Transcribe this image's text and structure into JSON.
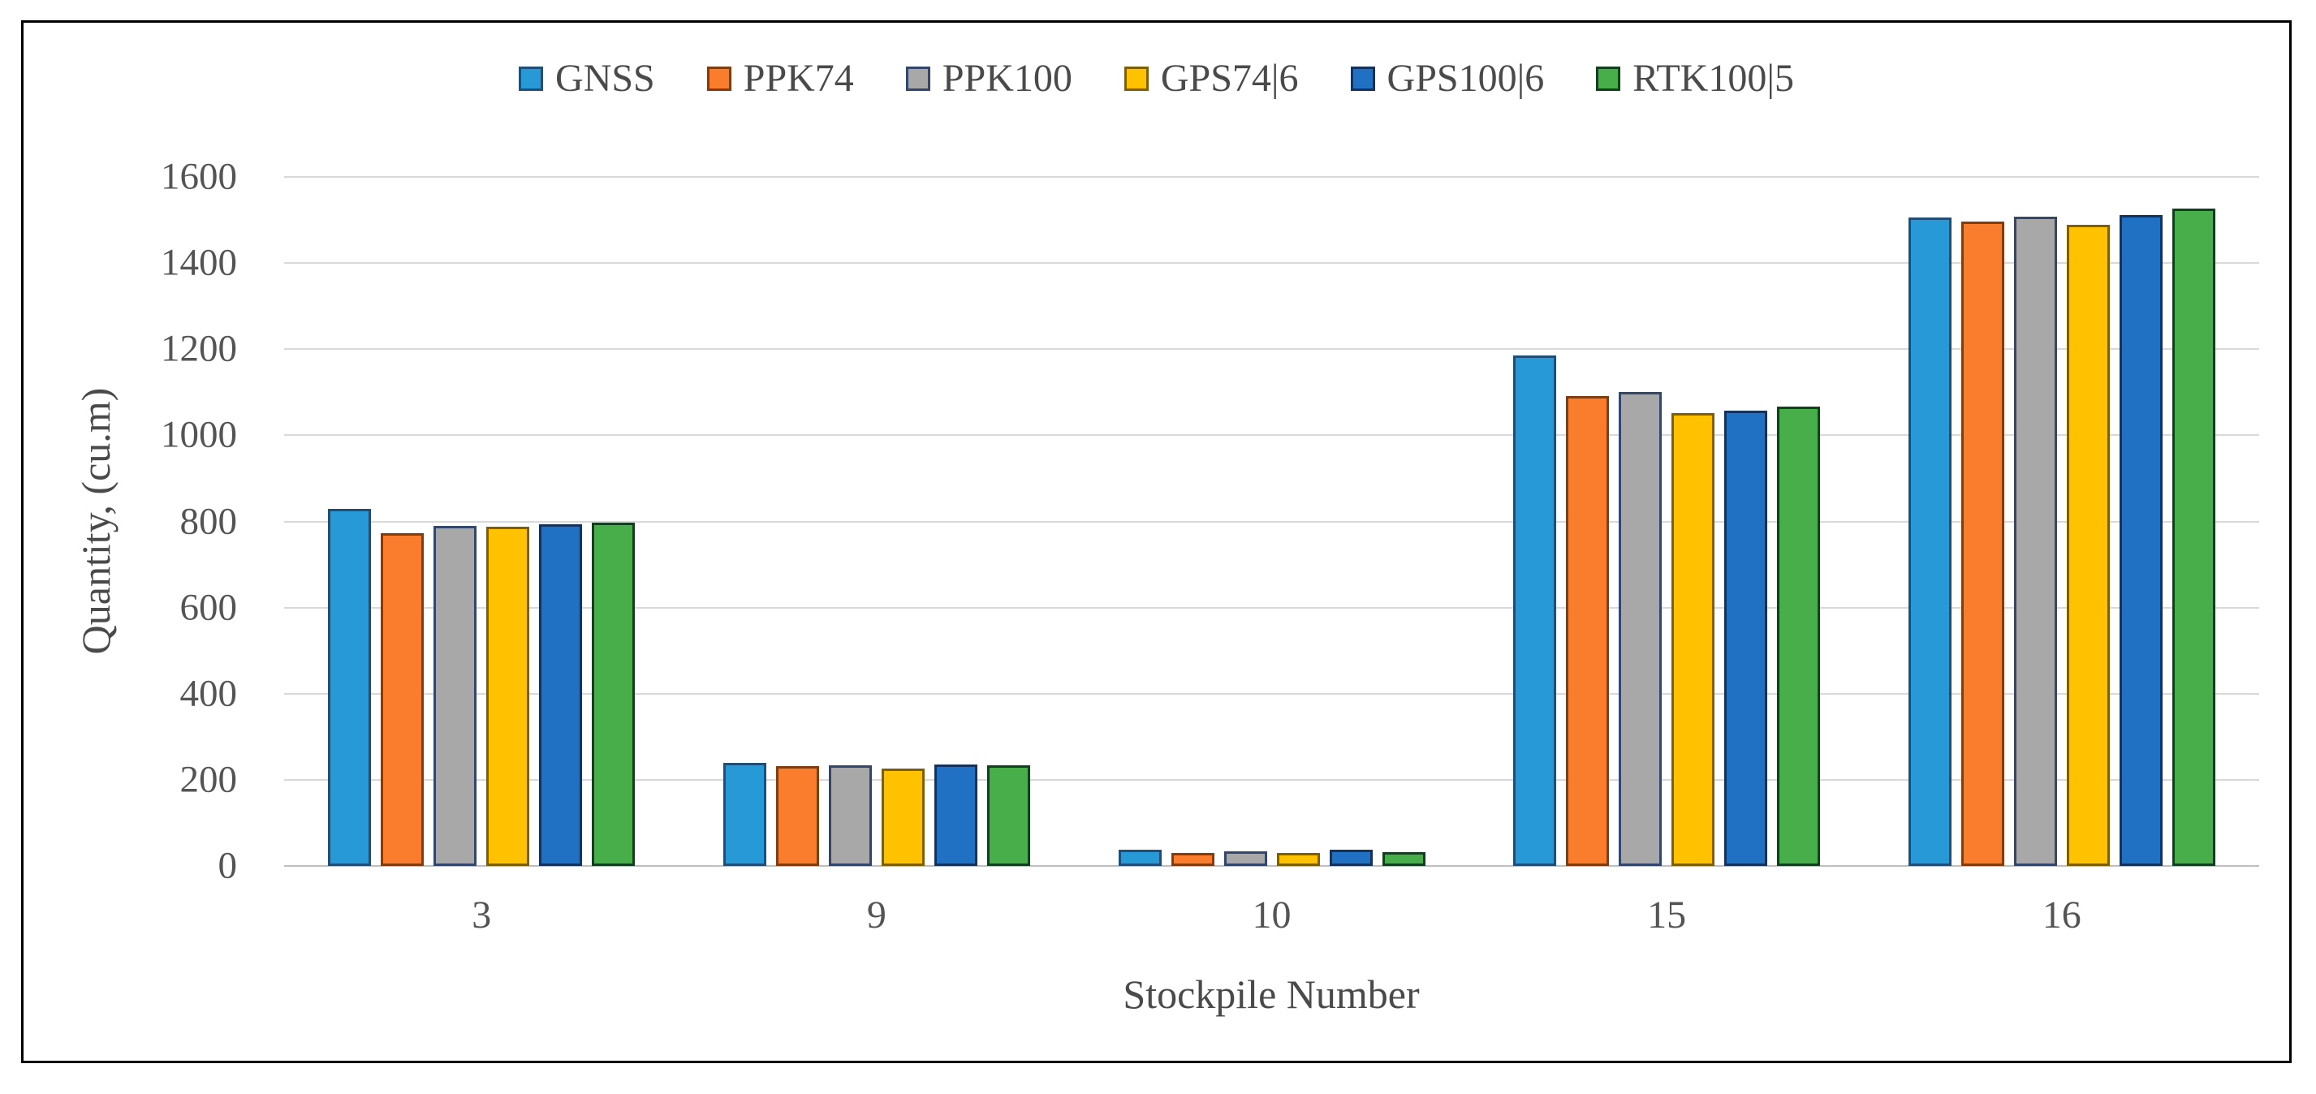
{
  "figure": {
    "border_color": "#000000",
    "background_color": "#ffffff",
    "text_color": "#545454",
    "gridline_color": "#d9d9d9",
    "axis_line_color": "#bfbfbf"
  },
  "chart_data": {
    "type": "bar",
    "title": "",
    "xlabel": "Stockpile Number",
    "ylabel": "Quantity, (cu.m)",
    "categories": [
      "3",
      "9",
      "10",
      "15",
      "16"
    ],
    "series": [
      {
        "name": "GNSS",
        "color": "#2699d6",
        "border": "#1f4e79",
        "values": [
          830,
          240,
          38,
          1185,
          1506
        ]
      },
      {
        "name": "PPK74",
        "color": "#f97d2c",
        "border": "#843c0c",
        "values": [
          773,
          231,
          31,
          1091,
          1496
        ]
      },
      {
        "name": "PPK100",
        "color": "#a8a8a8",
        "border": "#33466b",
        "values": [
          789,
          234,
          33,
          1100,
          1508
        ]
      },
      {
        "name": "GPS74|6",
        "color": "#ffc100",
        "border": "#7f6000",
        "values": [
          788,
          227,
          31,
          1051,
          1488
        ]
      },
      {
        "name": "GPS100|6",
        "color": "#2070c4",
        "border": "#14325e",
        "values": [
          794,
          235,
          37,
          1057,
          1512
        ]
      },
      {
        "name": "RTK100|5",
        "color": "#48ae49",
        "border": "#11401f",
        "values": [
          798,
          233,
          32,
          1067,
          1526
        ]
      }
    ],
    "ylim": [
      0,
      1600
    ],
    "yticks": [
      0,
      200,
      400,
      600,
      800,
      1000,
      1200,
      1400,
      1600
    ],
    "grid": true,
    "legend_position": "top"
  }
}
